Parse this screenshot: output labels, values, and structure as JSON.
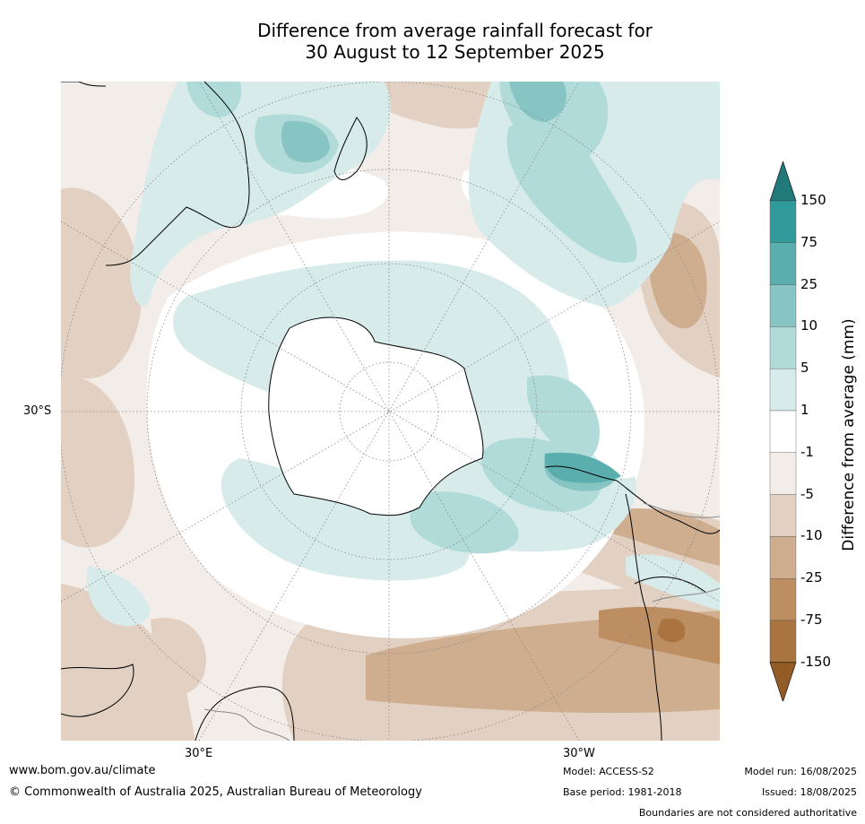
{
  "title_line1": "Difference from average rainfall forecast for",
  "title_line2": "30 August to 12 September 2025",
  "map": {
    "projection": "south-polar-stereographic",
    "lat_label": "30°S",
    "lon_labels": [
      "30°E",
      "30°W"
    ]
  },
  "colorbar": {
    "title": "Difference from average (mm)",
    "levels": [
      "150",
      "75",
      "25",
      "10",
      "5",
      "1",
      "-1",
      "-5",
      "-10",
      "-25",
      "-75",
      "-150"
    ],
    "colors": [
      "#22797a",
      "#319b9b",
      "#5aaeae",
      "#86c5c4",
      "#b0dbd9",
      "#d7ebea",
      "#ffffff",
      "#f3ede9",
      "#e2d1c2",
      "#cfae8f",
      "#bc8e62",
      "#aa7440",
      "#935c27"
    ]
  },
  "footer": {
    "url": "www.bom.gov.au/climate",
    "copyright": "© Commonwealth of Australia 2025, Australian Bureau of Meteorology",
    "model": "Model: ACCESS-S2",
    "base_period": "Base period: 1981-2018",
    "model_run": "Model run: 16/08/2025",
    "issued": "Issued: 18/08/2025",
    "boundaries": "Boundaries are not considered authoritative"
  }
}
